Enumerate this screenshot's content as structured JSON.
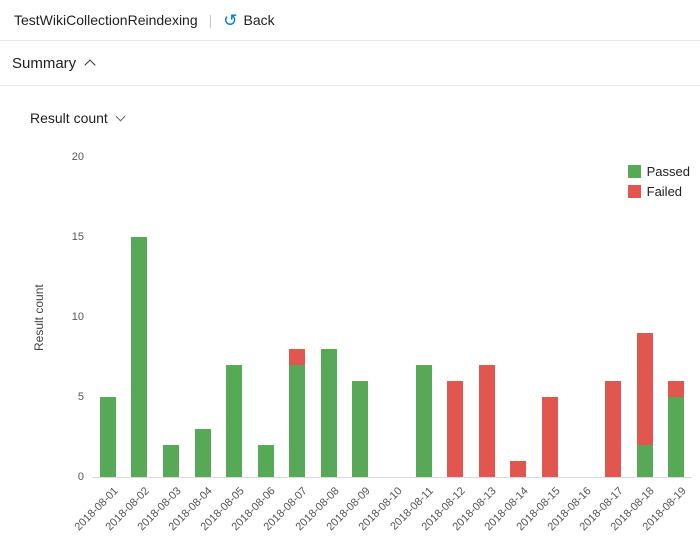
{
  "header": {
    "title": "TestWikiCollectionReindexing",
    "separator": "|",
    "back_label": "Back",
    "back_icon_glyph": "↺",
    "accent_color": "#0078d4"
  },
  "summary": {
    "label": "Summary",
    "collapse_icon": "chevron-up-icon"
  },
  "panel": {
    "dropdown_label": "Result count",
    "dropdown_icon": "chevron-down-icon"
  },
  "chart_data": {
    "type": "bar",
    "stacked": true,
    "title": "",
    "xlabel": "",
    "ylabel": "Result count",
    "ylim": [
      0,
      20
    ],
    "yticks": [
      0,
      5,
      10,
      15,
      20
    ],
    "grid": false,
    "legend_position": "top-right",
    "categories": [
      "2018-08-01",
      "2018-08-02",
      "2018-08-03",
      "2018-08-04",
      "2018-08-05",
      "2018-08-06",
      "2018-08-07",
      "2018-08-08",
      "2018-08-09",
      "2018-08-10",
      "2018-08-11",
      "2018-08-12",
      "2018-08-13",
      "2018-08-14",
      "2018-08-15",
      "2018-08-16",
      "2018-08-17",
      "2018-08-18",
      "2018-08-19"
    ],
    "series": [
      {
        "name": "Passed",
        "color": "#57A857",
        "values": [
          5,
          15,
          2,
          3,
          7,
          2,
          7,
          8,
          6,
          0,
          7,
          0,
          0,
          0,
          0,
          0,
          0,
          2,
          5
        ]
      },
      {
        "name": "Failed",
        "color": "#E1574F",
        "values": [
          0,
          0,
          0,
          0,
          0,
          0,
          1,
          0,
          0,
          0,
          0,
          6,
          7,
          1,
          5,
          0,
          6,
          7,
          1
        ]
      }
    ]
  }
}
